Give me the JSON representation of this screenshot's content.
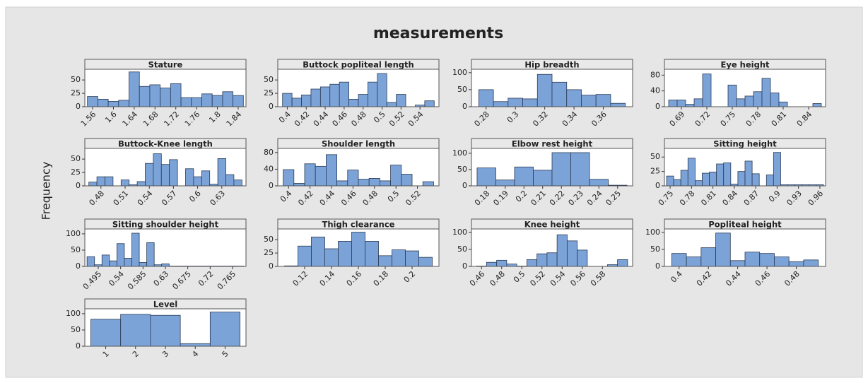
{
  "title": "measurements",
  "y_label": "Frequency",
  "chart_data": [
    {
      "type": "histogram",
      "title": "Stature",
      "bins": [
        1.55,
        1.57,
        1.59,
        1.61,
        1.63,
        1.65,
        1.67,
        1.69,
        1.71,
        1.73,
        1.75,
        1.77,
        1.79,
        1.81,
        1.83,
        1.85
      ],
      "values": [
        19,
        14,
        10,
        12,
        65,
        38,
        41,
        35,
        43,
        17,
        17,
        24,
        21,
        28,
        21
      ],
      "xlim": [
        1.545,
        1.855
      ],
      "ylim": [
        0,
        70
      ],
      "xticks": [
        1.56,
        1.6,
        1.64,
        1.68,
        1.72,
        1.76,
        1.8,
        1.84
      ],
      "yticks": [
        0,
        25,
        50
      ],
      "color": "#7ba3d8"
    },
    {
      "type": "histogram",
      "title": "Buttock popliteal length",
      "bins": [
        0.395,
        0.405,
        0.415,
        0.425,
        0.435,
        0.445,
        0.455,
        0.465,
        0.475,
        0.485,
        0.495,
        0.505,
        0.515,
        0.525,
        0.535,
        0.545,
        0.555
      ],
      "values": [
        25,
        16,
        22,
        33,
        37,
        42,
        46,
        14,
        23,
        46,
        62,
        8,
        23,
        0,
        3,
        11
      ],
      "xlim": [
        0.39,
        0.56
      ],
      "ylim": [
        0,
        70
      ],
      "xticks": [
        0.4,
        0.42,
        0.44,
        0.46,
        0.48,
        0.5,
        0.52,
        0.54
      ],
      "yticks": [
        0,
        25,
        50
      ],
      "color": "#7ba3d8"
    },
    {
      "type": "histogram",
      "title": "Hip breadth",
      "bins": [
        0.275,
        0.285,
        0.295,
        0.305,
        0.315,
        0.325,
        0.335,
        0.345,
        0.355,
        0.365,
        0.375
      ],
      "values": [
        50,
        15,
        25,
        23,
        95,
        72,
        50,
        34,
        36,
        10
      ],
      "xlim": [
        0.27,
        0.38
      ],
      "ylim": [
        0,
        110
      ],
      "xticks": [
        0.28,
        0.3,
        0.32,
        0.34,
        0.36
      ],
      "yticks": [
        0,
        50,
        100
      ],
      "color": "#7ba3d8"
    },
    {
      "type": "histogram",
      "title": "Eye height",
      "bins": [
        0.675,
        0.685,
        0.695,
        0.705,
        0.715,
        0.725,
        0.735,
        0.745,
        0.755,
        0.765,
        0.775,
        0.785,
        0.795,
        0.805,
        0.815,
        0.825,
        0.835,
        0.845,
        0.855
      ],
      "values": [
        17,
        17,
        6,
        20,
        83,
        0,
        0,
        55,
        20,
        27,
        38,
        72,
        35,
        12,
        0,
        0,
        0,
        8
      ],
      "xlim": [
        0.67,
        0.86
      ],
      "ylim": [
        0,
        95
      ],
      "xticks": [
        0.69,
        0.72,
        0.75,
        0.78,
        0.81,
        0.84
      ],
      "yticks": [
        0,
        40,
        80
      ],
      "color": "#7ba3d8"
    },
    {
      "type": "histogram",
      "title": "Buttock-Knee length",
      "bins": [
        0.465,
        0.475,
        0.485,
        0.495,
        0.505,
        0.515,
        0.525,
        0.535,
        0.545,
        0.555,
        0.565,
        0.575,
        0.585,
        0.595,
        0.605,
        0.615,
        0.625,
        0.635,
        0.645,
        0.655
      ],
      "values": [
        7,
        17,
        17,
        0,
        11,
        2,
        8,
        42,
        60,
        40,
        49,
        0,
        32,
        17,
        28,
        3,
        51,
        21,
        11
      ],
      "xlim": [
        0.46,
        0.66
      ],
      "ylim": [
        0,
        70
      ],
      "xticks": [
        0.48,
        0.51,
        0.54,
        0.57,
        0.6,
        0.63
      ],
      "yticks": [
        0,
        25,
        50
      ],
      "color": "#7ba3d8"
    },
    {
      "type": "histogram",
      "title": "Shoulder length",
      "bins": [
        0.395,
        0.405,
        0.415,
        0.425,
        0.435,
        0.445,
        0.455,
        0.465,
        0.475,
        0.485,
        0.495,
        0.505,
        0.515,
        0.525,
        0.535
      ],
      "values": [
        39,
        6,
        53,
        47,
        75,
        12,
        38,
        16,
        18,
        12,
        50,
        28,
        0,
        10
      ],
      "xlim": [
        0.39,
        0.54
      ],
      "ylim": [
        0,
        90
      ],
      "xticks": [
        0.4,
        0.42,
        0.44,
        0.46,
        0.48,
        0.5,
        0.52
      ],
      "yticks": [
        0,
        40,
        80
      ],
      "color": "#7ba3d8"
    },
    {
      "type": "histogram",
      "title": "Elbow rest height",
      "bins": [
        0.175,
        0.185,
        0.195,
        0.205,
        0.215,
        0.225,
        0.235,
        0.245,
        0.255
      ],
      "values": [
        55,
        18,
        58,
        48,
        102,
        102,
        20,
        2
      ],
      "xlim": [
        0.172,
        0.258
      ],
      "ylim": [
        0,
        115
      ],
      "xticks": [
        0.18,
        0.19,
        0.2,
        0.21,
        0.22,
        0.23,
        0.24,
        0.25
      ],
      "yticks": [
        0,
        50,
        100
      ],
      "color": "#7ba3d8"
    },
    {
      "type": "histogram",
      "title": "Sitting height",
      "bins": [
        0.745,
        0.755,
        0.765,
        0.775,
        0.785,
        0.795,
        0.805,
        0.815,
        0.825,
        0.835,
        0.845,
        0.855,
        0.865,
        0.875,
        0.885,
        0.895,
        0.905,
        0.915,
        0.925,
        0.935,
        0.945,
        0.955,
        0.965
      ],
      "values": [
        17,
        11,
        27,
        48,
        9,
        22,
        24,
        38,
        40,
        3,
        25,
        43,
        21,
        0,
        19,
        58,
        2,
        2,
        2,
        2,
        2,
        2
      ],
      "xlim": [
        0.742,
        0.968
      ],
      "ylim": [
        0,
        65
      ],
      "xticks": [
        0.75,
        0.78,
        0.81,
        0.84,
        0.87,
        0.9,
        0.93,
        0.96
      ],
      "yticks": [
        0,
        25,
        50
      ],
      "color": "#7ba3d8"
    },
    {
      "type": "histogram",
      "title": "Sitting shoulder height",
      "bins": [
        0.4725,
        0.4875,
        0.5025,
        0.5175,
        0.5325,
        0.5475,
        0.5625,
        0.5775,
        0.5925,
        0.6075,
        0.6225,
        0.6375,
        0.6525,
        0.6675,
        0.6825,
        0.6975,
        0.7125,
        0.7275,
        0.7425,
        0.7575,
        0.7725,
        0.7875
      ],
      "values": [
        30,
        5,
        35,
        17,
        70,
        25,
        102,
        12,
        73,
        5,
        8,
        1,
        1,
        1,
        1,
        1,
        1,
        1,
        1,
        1,
        1
      ],
      "xlim": [
        0.468,
        0.792
      ],
      "ylim": [
        0,
        115
      ],
      "xticks": [
        0.495,
        0.54,
        0.585,
        0.63,
        0.675,
        0.72,
        0.765
      ],
      "yticks": [
        0,
        50,
        100
      ],
      "color": "#7ba3d8"
    },
    {
      "type": "histogram",
      "title": "Thigh clearance",
      "bins": [
        0.105,
        0.115,
        0.125,
        0.135,
        0.145,
        0.155,
        0.165,
        0.175,
        0.185,
        0.195,
        0.205,
        0.215
      ],
      "values": [
        1,
        38,
        55,
        33,
        47,
        64,
        47,
        20,
        31,
        29,
        17
      ],
      "xlim": [
        0.1,
        0.22
      ],
      "ylim": [
        0,
        70
      ],
      "xticks": [
        0.12,
        0.14,
        0.16,
        0.18,
        0.2
      ],
      "yticks": [
        0,
        25,
        50
      ],
      "color": "#7ba3d8"
    },
    {
      "type": "histogram",
      "title": "Knee height",
      "bins": [
        0.455,
        0.465,
        0.475,
        0.485,
        0.495,
        0.505,
        0.515,
        0.525,
        0.535,
        0.545,
        0.555,
        0.565,
        0.575,
        0.585,
        0.595,
        0.605
      ],
      "values": [
        1,
        12,
        18,
        7,
        1,
        20,
        37,
        40,
        93,
        75,
        48,
        0,
        0,
        5,
        20
      ],
      "xlim": [
        0.45,
        0.61
      ],
      "ylim": [
        0,
        110
      ],
      "xticks": [
        0.46,
        0.48,
        0.5,
        0.52,
        0.54,
        0.56,
        0.58
      ],
      "yticks": [
        0,
        50,
        100
      ],
      "color": "#7ba3d8"
    },
    {
      "type": "histogram",
      "title": "Popliteal height",
      "bins": [
        0.395,
        0.405,
        0.415,
        0.425,
        0.435,
        0.445,
        0.455,
        0.465,
        0.475,
        0.485,
        0.495
      ],
      "values": [
        38,
        28,
        55,
        98,
        17,
        42,
        38,
        28,
        14,
        19
      ],
      "xlim": [
        0.39,
        0.5
      ],
      "ylim": [
        0,
        110
      ],
      "xticks": [
        0.4,
        0.42,
        0.44,
        0.46,
        0.48
      ],
      "yticks": [
        0,
        50,
        100
      ],
      "color": "#7ba3d8"
    },
    {
      "type": "histogram",
      "title": "Level",
      "bins": [
        0.5,
        1.5,
        2.5,
        3.5,
        4.5,
        5.5
      ],
      "values": [
        83,
        98,
        95,
        8,
        105
      ],
      "xlim": [
        0.3,
        5.7
      ],
      "ylim": [
        0,
        115
      ],
      "xticks": [
        1,
        2,
        3,
        4,
        5
      ],
      "yticks": [
        0,
        50,
        100
      ],
      "color": "#7ba3d8"
    }
  ]
}
